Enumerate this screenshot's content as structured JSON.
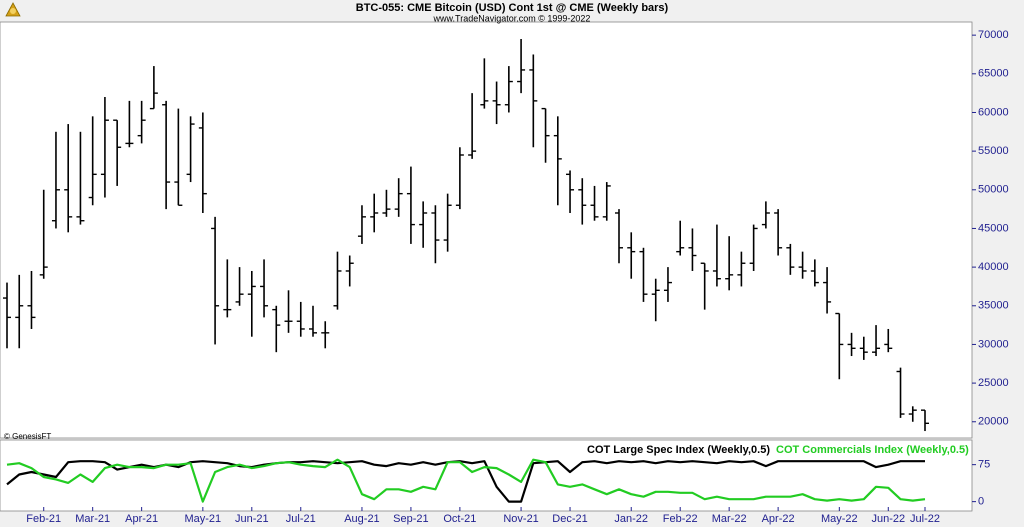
{
  "chart_data": [
    {
      "type": "ohlc",
      "title": "BTC-055:  CME Bitcoin (USD) Cont 1st @ CME  (Weekly bars)",
      "subtitle": "www.TradeNavigator.com © 1999-2022",
      "annotation": "© GenesisFT",
      "color": "#000000",
      "categories": [
        null,
        null,
        null,
        "Feb-21",
        null,
        null,
        null,
        "Mar-21",
        null,
        null,
        null,
        "Apr-21",
        null,
        null,
        null,
        null,
        "May-21",
        null,
        null,
        null,
        "Jun-21",
        null,
        null,
        null,
        "Jul-21",
        null,
        null,
        null,
        null,
        "Aug-21",
        null,
        null,
        null,
        "Sep-21",
        null,
        null,
        null,
        "Oct-21",
        null,
        null,
        null,
        null,
        "Nov-21",
        null,
        null,
        null,
        "Dec-21",
        null,
        null,
        null,
        null,
        "Jan-22",
        null,
        null,
        null,
        "Feb-22",
        null,
        null,
        null,
        "Mar-22",
        null,
        null,
        null,
        "Apr-22",
        null,
        null,
        null,
        null,
        "May-22",
        null,
        null,
        null,
        "Jun-22",
        null,
        null,
        "Jul-22"
      ],
      "open": [
        36000,
        33500,
        35000,
        39000,
        46000,
        50000,
        46500,
        49000,
        52000,
        59000,
        56000,
        57000,
        60500,
        61000,
        51000,
        52000,
        58000,
        45000,
        34500,
        35500,
        36500,
        37500,
        34500,
        33000,
        33000,
        32000,
        31500,
        35000,
        39500,
        44000,
        46500,
        47000,
        47500,
        49500,
        45500,
        47000,
        43500,
        48000,
        54500,
        61000,
        61500,
        61000,
        64000,
        65500,
        60500,
        57000,
        52000,
        50000,
        48000,
        46500,
        47000,
        42500,
        42000,
        36500,
        37000,
        42000,
        42500,
        40500,
        39500,
        38500,
        39000,
        40500,
        45500,
        47000,
        42500,
        40000,
        39500,
        38000,
        34000,
        30000,
        29500,
        29000,
        30000,
        26500,
        21000,
        21500
      ],
      "high": [
        38000,
        39000,
        39500,
        50000,
        57500,
        58500,
        57500,
        59500,
        62000,
        59000,
        61500,
        61500,
        66000,
        61500,
        60500,
        59500,
        60000,
        46500,
        41000,
        40000,
        39500,
        41000,
        35000,
        37000,
        35500,
        35000,
        33000,
        42000,
        41500,
        48000,
        49500,
        50000,
        51500,
        53000,
        48500,
        48000,
        49500,
        55500,
        62500,
        67000,
        64000,
        66000,
        69500,
        67500,
        60500,
        59500,
        52500,
        51500,
        50500,
        51000,
        47500,
        44500,
        42500,
        38500,
        40000,
        46000,
        45000,
        40500,
        45500,
        44000,
        42000,
        45500,
        48500,
        47500,
        43000,
        42000,
        41000,
        40000,
        34000,
        31500,
        31000,
        32500,
        32000,
        27000,
        22000,
        21500
      ],
      "low": [
        29500,
        29500,
        32000,
        38500,
        45000,
        44500,
        45500,
        48000,
        49000,
        50500,
        55500,
        56000,
        60500,
        47500,
        48000,
        51000,
        47000,
        30000,
        33500,
        35000,
        31000,
        33500,
        29000,
        31500,
        31000,
        31000,
        29500,
        34500,
        37500,
        43000,
        44500,
        46500,
        46500,
        43000,
        42500,
        40500,
        42000,
        47500,
        54000,
        60500,
        58500,
        60000,
        62500,
        55500,
        53500,
        48000,
        47000,
        45500,
        46000,
        46000,
        40500,
        38500,
        35500,
        33000,
        35500,
        41500,
        39500,
        34500,
        37500,
        37000,
        37500,
        39500,
        45000,
        41500,
        39000,
        38500,
        37500,
        34000,
        25500,
        28500,
        28000,
        28500,
        29000,
        20500,
        20000,
        18800
      ],
      "close": [
        33500,
        35000,
        33500,
        40000,
        50000,
        46500,
        46000,
        52000,
        59000,
        55500,
        56000,
        59000,
        62500,
        51000,
        48000,
        58500,
        49500,
        35000,
        34500,
        36500,
        37500,
        35000,
        32500,
        33000,
        32000,
        31500,
        31500,
        39500,
        40500,
        46500,
        47000,
        47500,
        49500,
        45500,
        47000,
        43500,
        48000,
        54500,
        55000,
        61500,
        61000,
        64000,
        65500,
        61500,
        57000,
        54000,
        50000,
        48000,
        46500,
        50500,
        42500,
        42000,
        36500,
        37000,
        38000,
        42500,
        41500,
        39500,
        38500,
        39000,
        40500,
        45000,
        47000,
        42500,
        40000,
        39500,
        38000,
        35500,
        30000,
        29500,
        29000,
        29500,
        29500,
        21000,
        21500,
        19800
      ],
      "ylim": [
        17900,
        71700
      ],
      "yticks": [
        20000,
        25000,
        30000,
        35000,
        40000,
        45000,
        50000,
        55000,
        60000,
        65000,
        70000
      ],
      "grid": false
    },
    {
      "type": "line",
      "series": [
        {
          "name": "COT Large Spec Index (Weekly,0.5)",
          "color": "#000000",
          "values": [
            35,
            55,
            60,
            55,
            50,
            80,
            82,
            82,
            80,
            65,
            70,
            75,
            70,
            75,
            70,
            80,
            82,
            80,
            78,
            72,
            70,
            75,
            78,
            80,
            80,
            82,
            80,
            78,
            80,
            82,
            75,
            72,
            78,
            75,
            80,
            75,
            80,
            82,
            78,
            82,
            30,
            0,
            0,
            78,
            80,
            82,
            60,
            80,
            82,
            78,
            82,
            80,
            82,
            78,
            82,
            80,
            82,
            80,
            78,
            82,
            80,
            82,
            72,
            82,
            82,
            82,
            82,
            82,
            82,
            82,
            82,
            70,
            75,
            82,
            82,
            82
          ]
        },
        {
          "name": "COT Commercials Index (Weekly,0.5)",
          "color": "#22cc22",
          "values": [
            75,
            78,
            68,
            50,
            45,
            38,
            55,
            40,
            68,
            75,
            70,
            70,
            68,
            75,
            75,
            78,
            0,
            60,
            70,
            75,
            68,
            72,
            78,
            80,
            75,
            72,
            70,
            85,
            70,
            15,
            5,
            25,
            25,
            20,
            30,
            25,
            80,
            80,
            60,
            70,
            68,
            55,
            40,
            85,
            80,
            35,
            30,
            35,
            25,
            15,
            25,
            15,
            10,
            20,
            20,
            18,
            18,
            5,
            10,
            5,
            5,
            5,
            10,
            10,
            10,
            15,
            5,
            2,
            5,
            2,
            5,
            30,
            28,
            5,
            2,
            5
          ]
        }
      ],
      "ylim": [
        -19,
        125
      ],
      "yticks": [
        0,
        75
      ],
      "grid": false
    }
  ]
}
